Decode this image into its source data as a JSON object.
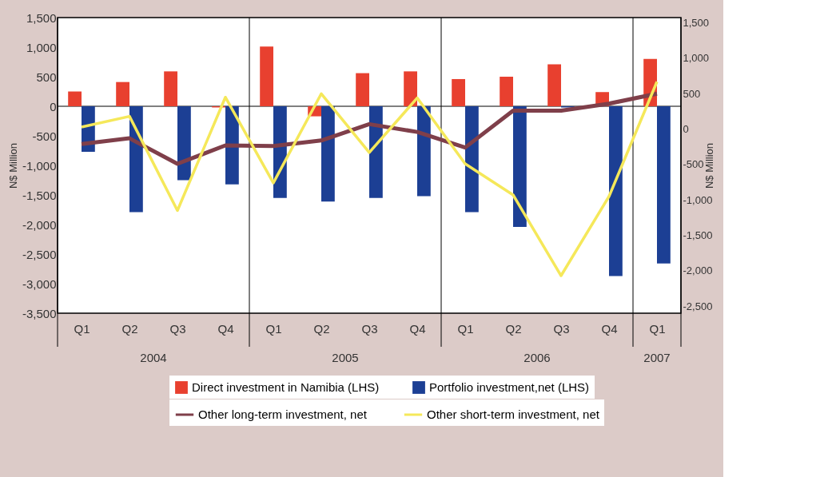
{
  "chart_data": {
    "type": "bar",
    "ylabel": "N$ Million",
    "y2label": "N$ Million",
    "categories": [
      "Q1",
      "Q2",
      "Q3",
      "Q4",
      "Q1",
      "Q2",
      "Q3",
      "Q4",
      "Q1",
      "Q2",
      "Q3",
      "Q4",
      "Q1"
    ],
    "annotations": [
      "2004",
      "2005",
      "2006",
      "2007"
    ],
    "series": [
      {
        "name": "Direct investment in Namibia (LHS)",
        "color": "#e8402f",
        "values": [
          250,
          410,
          590,
          -20,
          1010,
          -170,
          560,
          590,
          460,
          500,
          710,
          240,
          800
        ]
      },
      {
        "name": "Portfolio investment,net (LHS)",
        "color": "#1c3f94",
        "values": [
          -770,
          -1790,
          -1250,
          -1320,
          -1550,
          -1610,
          -1550,
          -1520,
          -1790,
          -2040,
          -20,
          -2870,
          -2660
        ]
      },
      {
        "name": "Other long-term investment, net",
        "type": "line",
        "axis": "y2",
        "color": "#7f3f4a",
        "values": [
          -210,
          -130,
          -490,
          -230,
          -240,
          -160,
          70,
          -40,
          -260,
          260,
          260,
          360,
          500
        ]
      },
      {
        "name": "Other short-term investment, net",
        "type": "line",
        "axis": "y2",
        "color": "#f5e85a",
        "values": [
          30,
          180,
          -1150,
          450,
          -760,
          500,
          -330,
          440,
          -490,
          -930,
          -2070,
          -950,
          670
        ]
      }
    ],
    "ylim": [
      -3500,
      1500
    ],
    "yticks": [
      {
        "value": -3500,
        "label": "-3,500"
      },
      {
        "value": -3000,
        "label": "-3,000"
      },
      {
        "value": -2500,
        "label": "-2,500"
      },
      {
        "value": -2000,
        "label": "-2,000"
      },
      {
        "value": -1500,
        "label": "-1,500"
      },
      {
        "value": -1000,
        "label": "-1,000"
      },
      -500,
      0,
      500,
      {
        "value": 1000,
        "label": "1,000"
      },
      {
        "value": 1500,
        "label": "1,500"
      }
    ],
    "y2lim": [
      -2600,
      1575
    ],
    "y2ticks": [
      {
        "value": -2500,
        "label": "-2,500"
      },
      {
        "value": -2000,
        "label": "-2,000"
      },
      {
        "value": -1500,
        "label": "-1,500"
      },
      {
        "value": -1000,
        "label": "-1,000"
      },
      -500,
      0,
      500,
      {
        "value": 1000,
        "label": "1,000"
      },
      {
        "value": 1500,
        "label": "1,500"
      }
    ],
    "ref_lines": [
      {
        "axis": "y",
        "value": 0,
        "color": "#000000"
      }
    ],
    "grid": false,
    "legend": "bottom"
  }
}
